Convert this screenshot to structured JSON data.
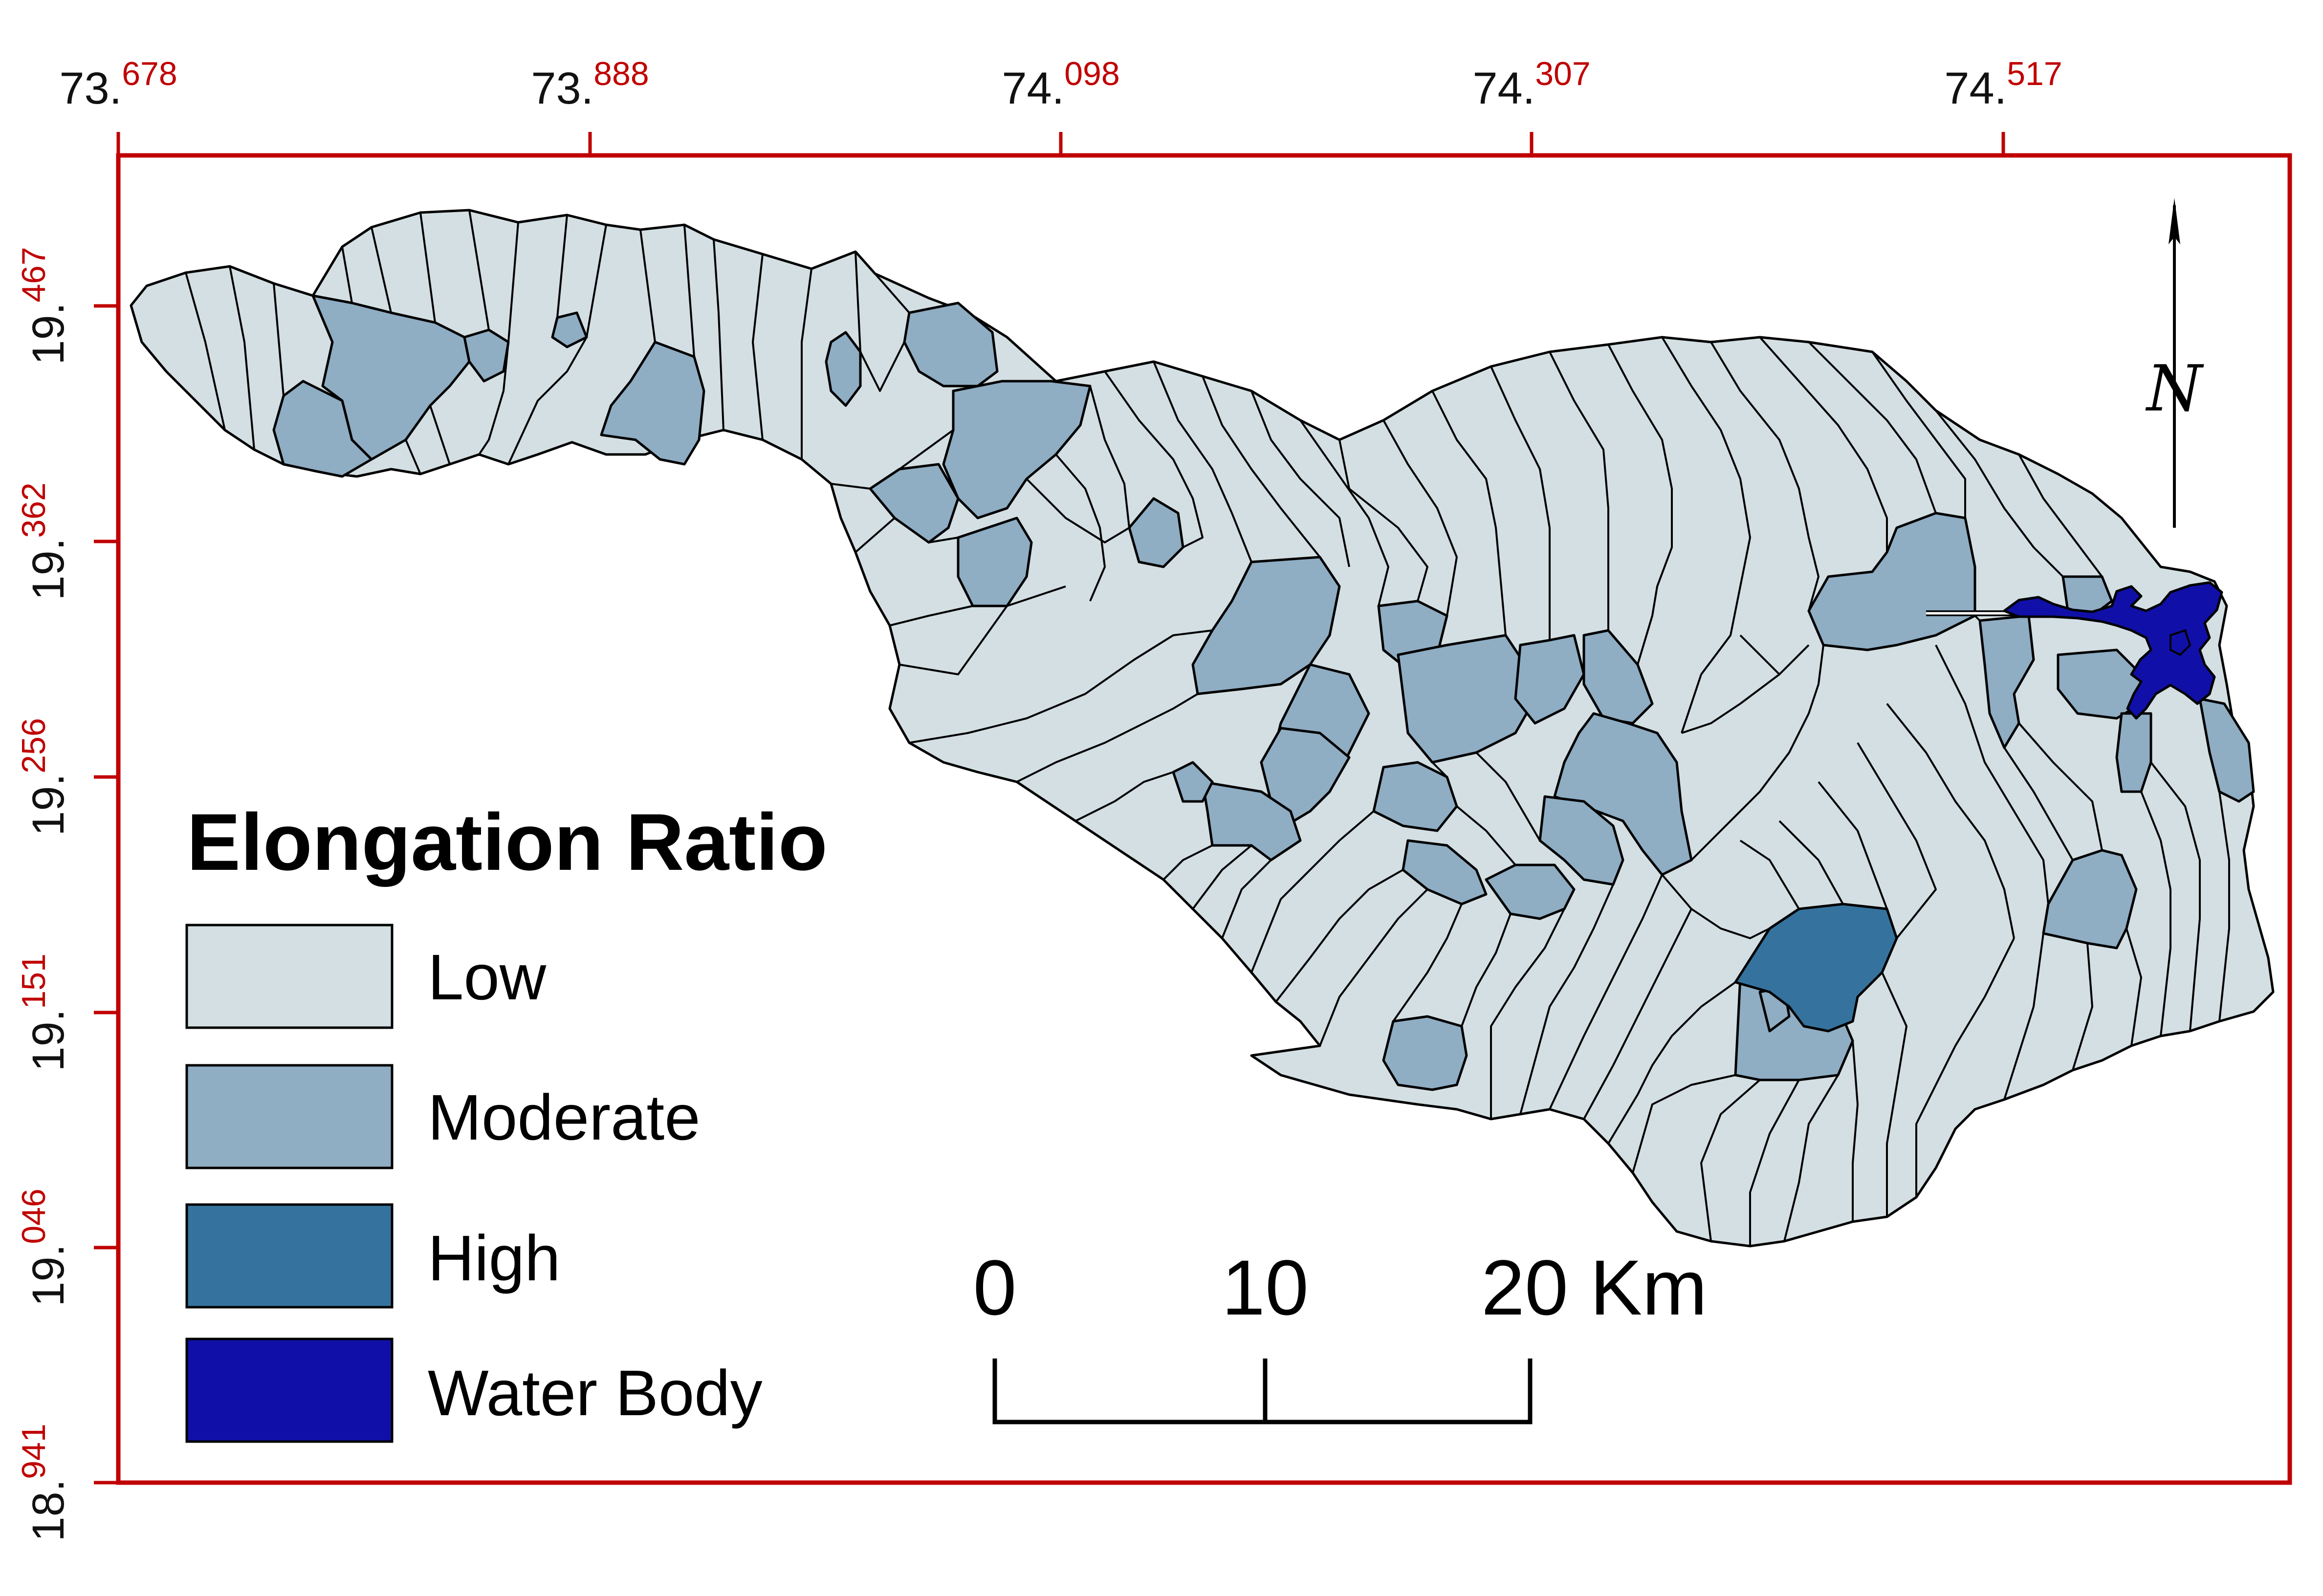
{
  "colors": {
    "frame": "#c00000",
    "boundary": "#000000",
    "low": "#d3dfe3",
    "moderate": "#8fadc3",
    "high": "#35739e",
    "water_body": "#1010a8",
    "coord_fraction": "#c00000"
  },
  "top_axis": {
    "ticks": [
      {
        "int": "73.",
        "frac": "678"
      },
      {
        "int": "73.",
        "frac": "888"
      },
      {
        "int": "74.",
        "frac": "098"
      },
      {
        "int": "74.",
        "frac": "307"
      },
      {
        "int": "74.",
        "frac": "517"
      }
    ]
  },
  "left_axis": {
    "ticks": [
      {
        "int": "19.",
        "frac": "467"
      },
      {
        "int": "19.",
        "frac": "362"
      },
      {
        "int": "19.",
        "frac": "256"
      },
      {
        "int": "19.",
        "frac": "151"
      },
      {
        "int": "19.",
        "frac": "046"
      },
      {
        "int": "18.",
        "frac": "941"
      }
    ]
  },
  "legend": {
    "title": "Elongation Ratio",
    "items": [
      {
        "label": "Low",
        "color_key": "low"
      },
      {
        "label": "Moderate",
        "color_key": "moderate"
      },
      {
        "label": "High",
        "color_key": "high"
      },
      {
        "label": "Water Body",
        "color_key": "water_body"
      }
    ]
  },
  "scale_bar": {
    "labels": [
      "0",
      "10",
      "20 Km"
    ]
  },
  "north_arrow": {
    "label": "N",
    "icon": "north-arrow-icon"
  }
}
